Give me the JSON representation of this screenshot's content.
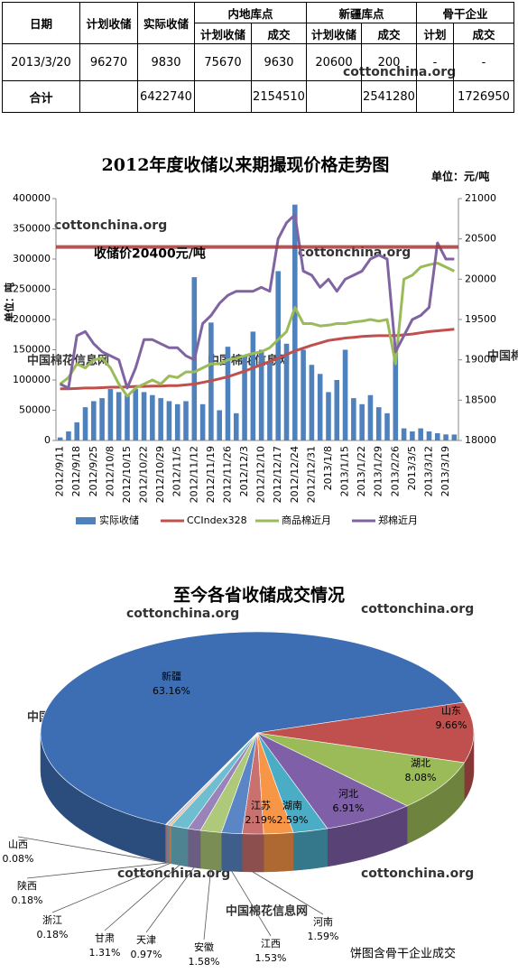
{
  "watermark": "cottonchina.org",
  "watermark2": "中国棉花信息网",
  "table": {
    "header": [
      [
        "日期",
        "计划收储",
        "实际收储",
        "内地库点",
        "新疆库点",
        "骨干企业"
      ],
      [
        "计划收储",
        "成交",
        "计划收储",
        "成交",
        "计划",
        "成交"
      ]
    ],
    "rows": [
      [
        "2013/3/20",
        96270,
        9830,
        75670,
        9630,
        20600,
        200,
        "-",
        "-"
      ],
      [
        "合计",
        null,
        6422740,
        null,
        2154510,
        null,
        2541280,
        null,
        1726950
      ]
    ]
  },
  "chart_data": [
    {
      "type": "bar_line",
      "title": "2012年度收储以来期撮现价格走势图",
      "unit_label": "单位：元/吨",
      "y_label": "单位：吨",
      "categories": [
        "2012/9/11",
        null,
        "2012/9/18",
        null,
        "2012/9/25",
        null,
        "2012/10/8",
        null,
        "2012/10/15",
        null,
        "2012/10/22",
        null,
        "2012/10/29",
        null,
        "2012/11/5",
        null,
        "2012/11/12",
        null,
        "2012/11/19",
        null,
        "2012/11/26",
        null,
        "2012/12/3",
        null,
        "2012/12/10",
        null,
        "2012/12/17",
        null,
        "2012/12/24",
        null,
        "2012/12/31",
        null,
        "2013/1/8",
        null,
        "2013/1/15",
        null,
        "2013/1/22",
        null,
        "2013/1/29",
        null,
        "2013/2/26",
        null,
        "2013/3/5",
        null,
        "2013/3/12",
        null,
        "2013/3/19",
        null
      ],
      "series": [
        {
          "name": "实际收储",
          "type": "bar",
          "color": "#4f81bd",
          "values": [
            5000,
            15000,
            30000,
            55000,
            65000,
            70000,
            85000,
            80000,
            75000,
            85000,
            80000,
            75000,
            70000,
            65000,
            60000,
            65000,
            270000,
            60000,
            195000,
            50000,
            155000,
            45000,
            140000,
            180000,
            150000,
            130000,
            280000,
            160000,
            390000,
            150000,
            125000,
            110000,
            80000,
            100000,
            150000,
            70000,
            60000,
            75000,
            55000,
            45000,
            145000,
            20000,
            15000,
            20000,
            15000,
            12000,
            10000,
            9830
          ]
        },
        {
          "name": "CCIndex328",
          "type": "line",
          "axis": "y2",
          "color": "#c0504d",
          "values": [
            18640,
            18640,
            18645,
            18650,
            18650,
            18655,
            18660,
            18660,
            18665,
            18670,
            18670,
            18675,
            18675,
            18680,
            18680,
            18690,
            18700,
            18720,
            18740,
            18765,
            18790,
            18825,
            18860,
            18900,
            18940,
            18980,
            19020,
            19065,
            19110,
            19145,
            19180,
            19210,
            19240,
            19255,
            19270,
            19280,
            19290,
            19295,
            19300,
            19300,
            19300,
            19310,
            19320,
            19335,
            19350,
            19360,
            19370,
            19380
          ]
        },
        {
          "name": "商品棉近月",
          "type": "line",
          "axis": "y2",
          "color": "#9bbb59",
          "values": [
            18700,
            18780,
            18950,
            18900,
            19000,
            19020,
            18900,
            18700,
            18550,
            18650,
            18700,
            18750,
            18700,
            18800,
            18780,
            18850,
            18850,
            18900,
            18950,
            18950,
            19000,
            19020,
            19050,
            19080,
            19100,
            19150,
            19250,
            19350,
            19650,
            19450,
            19450,
            19420,
            19430,
            19450,
            19450,
            19470,
            19480,
            19500,
            19480,
            19500,
            18950,
            20000,
            20050,
            20150,
            20180,
            20200,
            20150,
            20100
          ]
        },
        {
          "name": "郑棉近月",
          "type": "line",
          "axis": "y2",
          "color": "#8064a2",
          "values": [
            18700,
            18650,
            19300,
            19350,
            19200,
            19100,
            19050,
            19000,
            18650,
            18900,
            19250,
            19250,
            19200,
            19150,
            19150,
            19050,
            19000,
            19450,
            19550,
            19700,
            19800,
            19850,
            19850,
            19850,
            19900,
            19850,
            20500,
            20700,
            20800,
            20100,
            20050,
            19900,
            20000,
            19850,
            20000,
            20050,
            20100,
            20250,
            20300,
            20250,
            19100,
            19300,
            19500,
            19550,
            19650,
            20450,
            20250,
            20250
          ]
        }
      ],
      "ylim": [
        0,
        400000
      ],
      "yticks": [
        0,
        50000,
        100000,
        150000,
        200000,
        250000,
        300000,
        350000,
        400000
      ],
      "y2lim": [
        18000,
        21000
      ],
      "y2ticks": [
        18000,
        18500,
        19000,
        19500,
        20000,
        20500,
        21000
      ],
      "reference_line": {
        "value": 20400,
        "axis": "y2",
        "label": "收储价20400元/吨",
        "color": "#a33a3a"
      },
      "legend": "bottom"
    },
    {
      "type": "pie",
      "title": "至今各省收储成交情况",
      "categories": [
        "新疆",
        "山东",
        "湖北",
        "河北",
        "湖南",
        "江苏",
        "河南",
        "江西",
        "安徽",
        "天津",
        "甘肃",
        "浙江",
        "陕西",
        "山西"
      ],
      "values": [
        63.16,
        9.66,
        8.08,
        6.91,
        2.59,
        2.19,
        1.59,
        1.53,
        1.58,
        0.97,
        1.31,
        0.18,
        0.18,
        0.08
      ],
      "value_labels": [
        "63.16%",
        "9.66%",
        "8.08%",
        "6.91%",
        "2.59%",
        "2.19%",
        "1.59%",
        "1.53%",
        "1.58%",
        "0.97%",
        "1.31%",
        "0.18%",
        "0.18%",
        "0.08%"
      ],
      "colors": [
        "#3d6eb4",
        "#c0504d",
        "#9bbb59",
        "#7f5fa8",
        "#4bacc6",
        "#f79646",
        "#c9716e",
        "#5a86c5",
        "#afc97a",
        "#9983b9",
        "#6fbdd1",
        "#f9ab6b",
        "#95b3d7",
        "#d99694"
      ],
      "note": "饼图含骨干企业成交"
    }
  ]
}
